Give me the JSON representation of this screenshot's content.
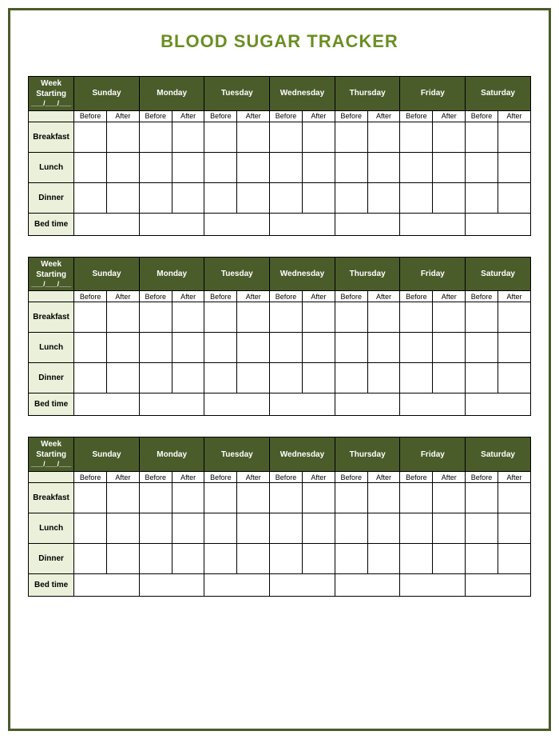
{
  "title": "BLOOD SUGAR TRACKER",
  "colors": {
    "header_bg": "#4a5c2a",
    "header_text": "#ffffff",
    "label_bg": "#eaf0d9",
    "border": "#000000",
    "title_color": "#6b8e23",
    "page_bg": "#ffffff",
    "frame_border": "#4a5c2a"
  },
  "week_header": {
    "label_line1": "Week",
    "label_line2": "Starting",
    "date_placeholder": "___/___/___"
  },
  "days": [
    "Sunday",
    "Monday",
    "Tuesday",
    "Wednesday",
    "Thursday",
    "Friday",
    "Saturday"
  ],
  "sub_columns": [
    "Before",
    "After"
  ],
  "meal_rows": [
    "Breakfast",
    "Lunch",
    "Dinner"
  ],
  "bedtime_row": "Bed time",
  "num_tables": 3
}
